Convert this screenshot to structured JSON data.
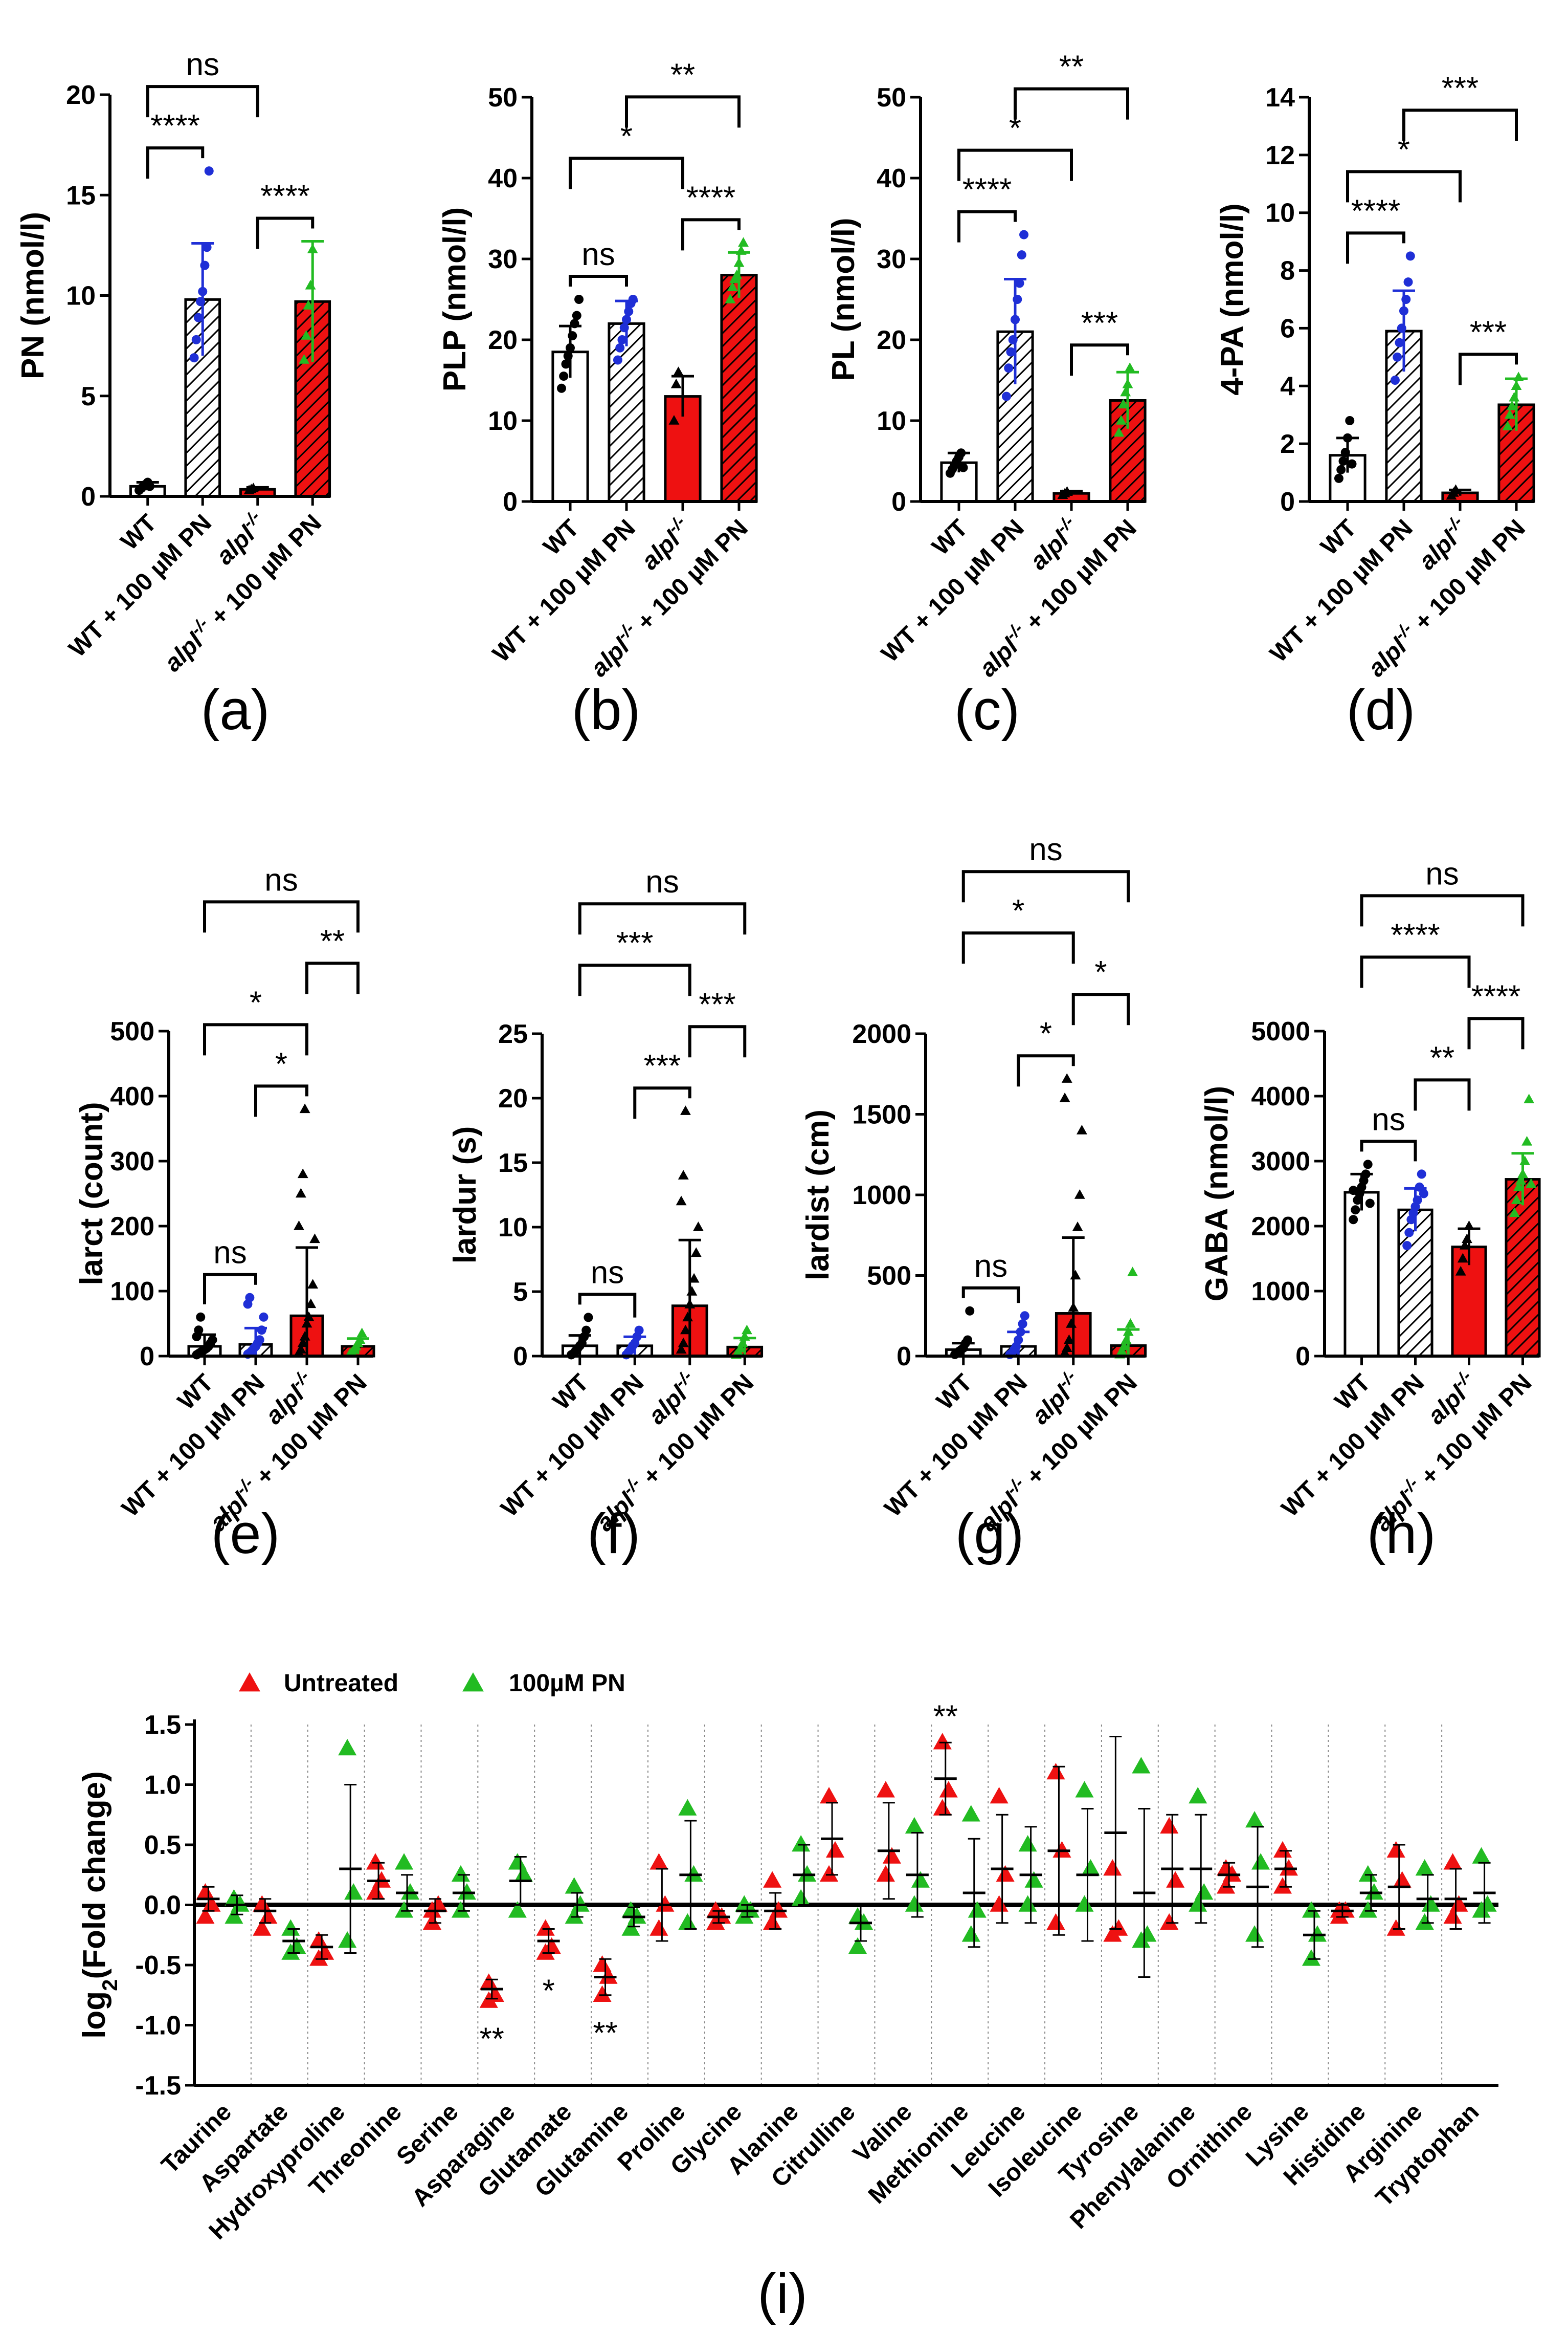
{
  "colors": {
    "black": "#000000",
    "white": "#ffffff",
    "blue": "#1f2fd6",
    "red": "#ee1111",
    "green": "#22bb22"
  },
  "groups": [
    "WT",
    "WT + 100 µM PN",
    "alpl-/-",
    "alpl-/- + 100 µM PN"
  ],
  "group_labels": [
    {
      "main": "WT",
      "sup": ""
    },
    {
      "main": "WT + 100 µM PN",
      "sup": ""
    },
    {
      "main": "alpl",
      "sup": "-/-"
    },
    {
      "main": "alpl",
      "sup": "-/-",
      "tail": " + 100 µM PN"
    }
  ],
  "chart_data": [
    {
      "type": "bar",
      "panel": "(a)",
      "ylabel": "PN (nmol/l)",
      "ylim": [
        0,
        20
      ],
      "yticks": [
        0,
        5,
        10,
        15,
        20
      ],
      "categories": [
        "WT",
        "WT + 100 µM PN",
        "alpl-/-",
        "alpl-/- + 100 µM PN"
      ],
      "values": [
        0.5,
        9.8,
        0.35,
        9.7
      ],
      "sd": [
        0.2,
        2.8,
        0.1,
        3.0
      ],
      "points": [
        [
          0.3,
          0.4,
          0.5,
          0.6,
          0.7,
          0.5
        ],
        [
          6.9,
          7.8,
          8.9,
          9.7,
          10.2,
          11.5,
          12.4,
          16.2
        ],
        [
          0.3,
          0.35,
          0.4
        ],
        [
          6.8,
          8.0,
          9.5,
          10.5,
          12.3
        ]
      ],
      "comparisons": [
        {
          "a": 0,
          "b": 1,
          "label": "****"
        },
        {
          "a": 2,
          "b": 3,
          "label": "****"
        },
        {
          "a": 0,
          "b": 2,
          "label": "ns"
        }
      ]
    },
    {
      "type": "bar",
      "panel": "(b)",
      "ylabel": "PLP (nmol/l)",
      "ylim": [
        0,
        50
      ],
      "yticks": [
        0,
        10,
        20,
        30,
        40,
        50
      ],
      "categories": [
        "WT",
        "WT + 100 µM PN",
        "alpl-/-",
        "alpl-/- + 100 µM PN"
      ],
      "values": [
        18.5,
        22.0,
        13.0,
        28.0
      ],
      "sd": [
        3.2,
        2.8,
        2.5,
        2.8
      ],
      "points": [
        [
          14.0,
          15.5,
          17.0,
          18.0,
          19.0,
          20.5,
          22.0,
          23.0,
          25.0
        ],
        [
          17.5,
          19.0,
          20.0,
          21.5,
          22.5,
          23.5,
          24.5,
          25.0
        ],
        [
          10.0,
          14.5,
          16.0
        ],
        [
          25.0,
          26.5,
          27.5,
          28.0,
          29.5,
          31.0,
          32.0
        ]
      ],
      "comparisons": [
        {
          "a": 0,
          "b": 1,
          "label": "ns"
        },
        {
          "a": 2,
          "b": 3,
          "label": "****"
        },
        {
          "a": 0,
          "b": 2,
          "label": "*"
        },
        {
          "a": 1,
          "b": 3,
          "label": "**"
        }
      ]
    },
    {
      "type": "bar",
      "panel": "(c)",
      "ylabel": "PL (nmol/l)",
      "ylim": [
        0,
        50
      ],
      "yticks": [
        0,
        10,
        20,
        30,
        40,
        50
      ],
      "categories": [
        "WT",
        "WT + 100 µM PN",
        "alpl-/-",
        "alpl-/- + 100 µM PN"
      ],
      "values": [
        4.8,
        21.0,
        1.0,
        12.5
      ],
      "sd": [
        1.2,
        6.5,
        0.3,
        3.5
      ],
      "points": [
        [
          3.5,
          4.0,
          4.5,
          5.0,
          5.5,
          6.0,
          4.2
        ],
        [
          13.0,
          16.5,
          18.5,
          20.0,
          22.5,
          25.0,
          27.0,
          30.5,
          33.0
        ],
        [
          0.8,
          1.0,
          1.2
        ],
        [
          8.5,
          10.0,
          12.0,
          13.5,
          14.5,
          16.5
        ]
      ],
      "comparisons": [
        {
          "a": 0,
          "b": 1,
          "label": "****"
        },
        {
          "a": 2,
          "b": 3,
          "label": "***"
        },
        {
          "a": 0,
          "b": 2,
          "label": "*"
        },
        {
          "a": 1,
          "b": 3,
          "label": "**"
        }
      ]
    },
    {
      "type": "bar",
      "panel": "(d)",
      "ylabel": "4-PA (nmol/l)",
      "ylim": [
        0,
        14
      ],
      "yticks": [
        0,
        2,
        4,
        6,
        8,
        10,
        12,
        14
      ],
      "categories": [
        "WT",
        "WT + 100 µM PN",
        "alpl-/-",
        "alpl-/- + 100 µM PN"
      ],
      "values": [
        1.6,
        5.9,
        0.3,
        3.35
      ],
      "sd": [
        0.6,
        1.4,
        0.1,
        0.9
      ],
      "points": [
        [
          0.8,
          1.1,
          1.4,
          1.7,
          2.2,
          2.8,
          1.3
        ],
        [
          4.2,
          5.0,
          5.5,
          6.0,
          6.6,
          7.0,
          7.6,
          8.5
        ],
        [
          0.2,
          0.3,
          0.4
        ],
        [
          2.6,
          3.0,
          3.3,
          3.6,
          4.0,
          4.3
        ]
      ],
      "comparisons": [
        {
          "a": 0,
          "b": 1,
          "label": "****"
        },
        {
          "a": 2,
          "b": 3,
          "label": "***"
        },
        {
          "a": 0,
          "b": 2,
          "label": "*"
        },
        {
          "a": 1,
          "b": 3,
          "label": "***"
        }
      ]
    },
    {
      "type": "bar",
      "panel": "(e)",
      "ylabel": "larct (count)",
      "ylim": [
        0,
        500
      ],
      "yticks": [
        0,
        100,
        200,
        300,
        400,
        500
      ],
      "categories": [
        "WT",
        "WT + 100 µM PN",
        "alpl-/-",
        "alpl-/- + 100 µM PN"
      ],
      "values": [
        15,
        18,
        62,
        15
      ],
      "sd": [
        18,
        25,
        105,
        12
      ],
      "points": [
        [
          2,
          4,
          6,
          8,
          10,
          12,
          15,
          20,
          25,
          30,
          40,
          60
        ],
        [
          3,
          5,
          8,
          12,
          15,
          20,
          25,
          40,
          60,
          80,
          90
        ],
        [
          5,
          10,
          20,
          30,
          50,
          60,
          80,
          110,
          180,
          200,
          250,
          280,
          380
        ],
        [
          4,
          6,
          10,
          15,
          20,
          25,
          35
        ]
      ],
      "comparisons": [
        {
          "a": 0,
          "b": 1,
          "label": "ns"
        },
        {
          "a": 1,
          "b": 2,
          "label": "*"
        },
        {
          "a": 0,
          "b": 2,
          "label": "*"
        },
        {
          "a": 2,
          "b": 3,
          "label": "**"
        },
        {
          "a": 0,
          "b": 3,
          "label": "ns"
        }
      ]
    },
    {
      "type": "bar",
      "panel": "(f)",
      "ylabel": "lardur (s)",
      "ylim": [
        0,
        25
      ],
      "yticks": [
        0,
        5,
        10,
        15,
        20,
        25
      ],
      "categories": [
        "WT",
        "WT + 100 µM PN",
        "alpl-/-",
        "alpl-/- + 100 µM PN"
      ],
      "values": [
        0.8,
        0.8,
        3.9,
        0.7
      ],
      "sd": [
        0.8,
        0.7,
        5.1,
        0.7
      ],
      "points": [
        [
          0.1,
          0.2,
          0.4,
          0.6,
          0.8,
          1.0,
          1.5,
          2.0,
          3.0
        ],
        [
          0.1,
          0.3,
          0.5,
          0.8,
          1.0,
          1.5,
          2.0
        ],
        [
          0.5,
          1.0,
          2.0,
          3.0,
          4.0,
          5.0,
          6.0,
          8.0,
          10.0,
          12.0,
          14.0,
          19.0
        ],
        [
          0.1,
          0.3,
          0.6,
          1.0,
          1.5,
          2.0
        ]
      ],
      "comparisons": [
        {
          "a": 0,
          "b": 1,
          "label": "ns"
        },
        {
          "a": 1,
          "b": 2,
          "label": "***"
        },
        {
          "a": 2,
          "b": 3,
          "label": "***"
        },
        {
          "a": 0,
          "b": 2,
          "label": "***"
        },
        {
          "a": 0,
          "b": 3,
          "label": "ns"
        }
      ]
    },
    {
      "type": "bar",
      "panel": "(g)",
      "ylabel": "lardist (cm)",
      "ylim": [
        0,
        2000
      ],
      "yticks": [
        0,
        500,
        1000,
        1500,
        2000
      ],
      "categories": [
        "WT",
        "WT + 100 µM PN",
        "alpl-/-",
        "alpl-/- + 100 µM PN"
      ],
      "values": [
        40,
        60,
        265,
        65
      ],
      "sd": [
        40,
        90,
        470,
        100
      ],
      "points": [
        [
          10,
          20,
          30,
          40,
          50,
          80,
          100,
          280
        ],
        [
          10,
          20,
          40,
          60,
          100,
          150,
          200,
          250
        ],
        [
          20,
          50,
          100,
          200,
          300,
          500,
          800,
          1000,
          1400,
          1600,
          1720
        ],
        [
          10,
          30,
          60,
          100,
          150,
          200,
          520
        ]
      ],
      "comparisons": [
        {
          "a": 0,
          "b": 1,
          "label": "ns"
        },
        {
          "a": 1,
          "b": 2,
          "label": "*"
        },
        {
          "a": 2,
          "b": 3,
          "label": "*"
        },
        {
          "a": 0,
          "b": 2,
          "label": "*"
        },
        {
          "a": 0,
          "b": 3,
          "label": "ns"
        }
      ]
    },
    {
      "type": "bar",
      "panel": "(h)",
      "ylabel": "GABA (nmol/l)",
      "ylim": [
        0,
        5000
      ],
      "yticks": [
        0,
        1000,
        2000,
        3000,
        4000,
        5000
      ],
      "categories": [
        "WT",
        "WT + 100 µM PN",
        "alpl-/-",
        "alpl-/- + 100 µM PN"
      ],
      "values": [
        2520,
        2250,
        1680,
        2720
      ],
      "sd": [
        280,
        330,
        280,
        400
      ],
      "points": [
        [
          2100,
          2250,
          2400,
          2500,
          2600,
          2700,
          2800,
          2950,
          2350,
          2550
        ],
        [
          1700,
          1900,
          2100,
          2200,
          2300,
          2400,
          2600,
          2800,
          2500
        ],
        [
          1300,
          1500,
          1700,
          1800,
          2000
        ],
        [
          2200,
          2400,
          2600,
          2700,
          2800,
          3000,
          3300,
          3950,
          2650
        ]
      ],
      "comparisons": [
        {
          "a": 0,
          "b": 1,
          "label": "ns"
        },
        {
          "a": 1,
          "b": 2,
          "label": "**"
        },
        {
          "a": 2,
          "b": 3,
          "label": "****"
        },
        {
          "a": 0,
          "b": 2,
          "label": "****"
        },
        {
          "a": 0,
          "b": 3,
          "label": "ns"
        }
      ]
    },
    {
      "type": "scatter",
      "panel": "(i)",
      "ylabel": "log2(Fold change)",
      "ylabel_main": "log",
      "ylabel_sub": "2",
      "ylabel_tail": "(Fold change)",
      "ylim": [
        -1.5,
        1.5
      ],
      "yticks": [
        -1.5,
        -1.0,
        -0.5,
        0.0,
        0.5,
        1.0,
        1.5
      ],
      "legend": [
        "Untreated",
        "100µM PN"
      ],
      "categories": [
        "Taurine",
        "Aspartate",
        "Hydroxyproline",
        "Threonine",
        "Serine",
        "Asparagine",
        "Glutamate",
        "Glutamine",
        "Proline",
        "Glycine",
        "Alanine",
        "Citrulline",
        "Valine",
        "Methionine",
        "Leucine",
        "Isoleucine",
        "Tyrosine",
        "Phenylalanine",
        "Ornithine",
        "Lysine",
        "Histidine",
        "Arginine",
        "Tryptophan"
      ],
      "series": [
        {
          "name": "Untreated",
          "mean": [
            0.05,
            -0.05,
            -0.35,
            0.2,
            -0.05,
            -0.7,
            -0.3,
            -0.6,
            0.0,
            -0.1,
            -0.05,
            0.55,
            0.45,
            1.05,
            0.3,
            0.45,
            0.6,
            0.3,
            0.25,
            0.3,
            -0.05,
            0.15,
            0.05
          ],
          "points": [
            [
              0.1,
              0.0,
              -0.1
            ],
            [
              0.0,
              -0.1,
              -0.2
            ],
            [
              -0.3,
              -0.4,
              -0.45
            ],
            [
              0.35,
              0.2,
              0.1
            ],
            [
              -0.05,
              0.0,
              -0.15
            ],
            [
              -0.65,
              -0.75,
              -0.8
            ],
            [
              -0.2,
              -0.35,
              -0.4
            ],
            [
              -0.5,
              -0.6,
              -0.75
            ],
            [
              0.35,
              0.0,
              -0.2
            ],
            [
              -0.05,
              -0.1,
              -0.15
            ],
            [
              0.2,
              -0.05,
              -0.15
            ],
            [
              0.9,
              0.45,
              0.25
            ],
            [
              0.95,
              0.4,
              0.25
            ],
            [
              1.35,
              0.95,
              0.8
            ],
            [
              0.9,
              0.25,
              0.0
            ],
            [
              1.1,
              0.45,
              -0.15
            ],
            [
              0.3,
              -0.2,
              -0.25
            ],
            [
              0.65,
              0.2,
              -0.15
            ],
            [
              0.3,
              0.25,
              0.15
            ],
            [
              0.45,
              0.3,
              0.15
            ],
            [
              -0.05,
              -0.05,
              -0.1
            ],
            [
              0.45,
              0.2,
              -0.2
            ],
            [
              0.35,
              0.0,
              -0.1
            ]
          ],
          "sd": [
            0.1,
            0.1,
            0.1,
            0.15,
            0.1,
            0.08,
            0.1,
            0.15,
            0.3,
            0.05,
            0.15,
            0.3,
            0.4,
            0.3,
            0.45,
            0.7,
            0.8,
            0.45,
            0.1,
            0.15,
            0.05,
            0.35,
            0.25
          ]
        },
        {
          "name": "100µM PN",
          "mean": [
            0.0,
            -0.3,
            0.3,
            0.1,
            0.1,
            0.2,
            0.0,
            -0.1,
            0.25,
            -0.05,
            0.25,
            -0.15,
            0.25,
            0.1,
            0.25,
            0.25,
            0.1,
            0.3,
            0.15,
            -0.25,
            0.1,
            0.05,
            0.1
          ],
          "points": [
            [
              0.05,
              0.0,
              -0.1
            ],
            [
              -0.2,
              -0.35,
              -0.4
            ],
            [
              1.3,
              0.1,
              -0.3
            ],
            [
              0.35,
              0.1,
              -0.05
            ],
            [
              0.25,
              0.1,
              -0.05
            ],
            [
              0.35,
              0.25,
              -0.05
            ],
            [
              0.15,
              0.0,
              -0.1
            ],
            [
              -0.05,
              -0.1,
              -0.2
            ],
            [
              0.8,
              0.25,
              -0.15
            ],
            [
              0.0,
              -0.05,
              -0.1
            ],
            [
              0.5,
              0.25,
              0.05
            ],
            [
              -0.1,
              -0.15,
              -0.35
            ],
            [
              0.65,
              0.2,
              0.0
            ],
            [
              0.75,
              -0.05,
              -0.25
            ],
            [
              0.5,
              0.2,
              0.0
            ],
            [
              0.95,
              0.3,
              0.0
            ],
            [
              1.15,
              -0.25,
              -0.3
            ],
            [
              0.9,
              0.1,
              0.0
            ],
            [
              0.7,
              0.35,
              -0.25
            ],
            [
              -0.05,
              -0.25,
              -0.45
            ],
            [
              0.25,
              0.1,
              -0.05
            ],
            [
              0.3,
              0.0,
              -0.15
            ],
            [
              0.4,
              0.0,
              -0.05
            ]
          ],
          "sd": [
            0.08,
            0.1,
            0.7,
            0.15,
            0.15,
            0.2,
            0.1,
            0.08,
            0.45,
            0.05,
            0.25,
            0.15,
            0.35,
            0.45,
            0.4,
            0.55,
            0.7,
            0.45,
            0.5,
            0.2,
            0.15,
            0.2,
            0.25
          ]
        }
      ],
      "annotations": [
        {
          "category": "Asparagine",
          "label": "**",
          "position": "below"
        },
        {
          "category": "Glutamate",
          "label": "*",
          "position": "below"
        },
        {
          "category": "Glutamine",
          "label": "**",
          "position": "below"
        },
        {
          "category": "Methionine",
          "label": "**",
          "position": "above"
        }
      ]
    }
  ]
}
